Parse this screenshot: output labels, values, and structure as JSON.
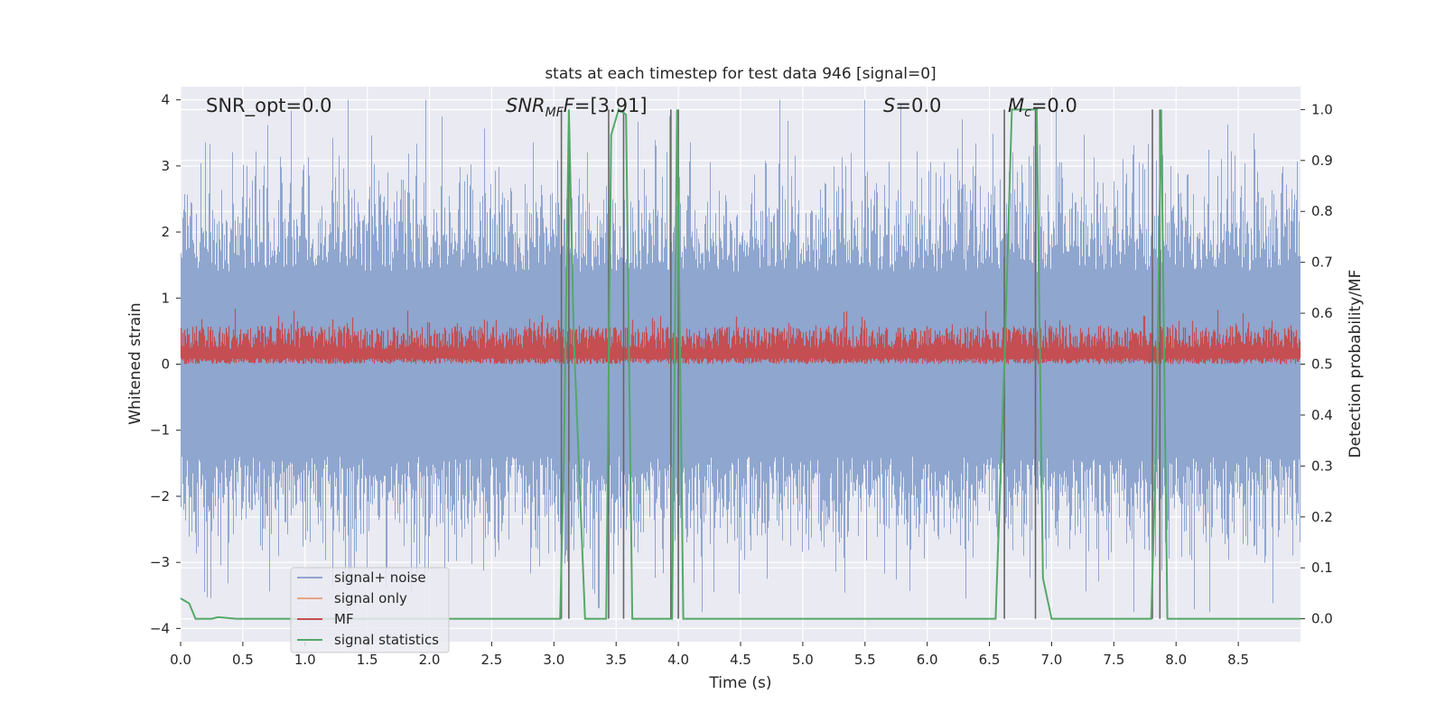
{
  "chart_data": {
    "type": "line",
    "title": "stats at each timestep for test data 946 [signal=0]",
    "xlabel": "Time (s)",
    "ylabel": "Whitened strain",
    "y2label": "Detection probability/MF",
    "xlim": [
      0.0,
      9.0
    ],
    "ylim": [
      -4.2,
      4.2
    ],
    "y2lim": [
      -0.045,
      1.045
    ],
    "xticks": [
      "0.0",
      "0.5",
      "1.0",
      "1.5",
      "2.0",
      "2.5",
      "3.0",
      "3.5",
      "4.0",
      "4.5",
      "5.0",
      "5.5",
      "6.0",
      "6.5",
      "7.0",
      "7.5",
      "8.0",
      "8.5"
    ],
    "yticks": [
      "4",
      "3",
      "2",
      "1",
      "0",
      "−1",
      "−2",
      "−3",
      "−4"
    ],
    "y2ticks": [
      "1.0",
      "0.9",
      "0.8",
      "0.7",
      "0.6",
      "0.5",
      "0.4",
      "0.3",
      "0.2",
      "0.1",
      "0.0"
    ],
    "grid": true,
    "legend_placement": "lower-left",
    "annotations": {
      "snr_opt": "SNR_opt=0.0",
      "snr_mf_main": "SNR",
      "snr_mf_sub": "MF",
      "snr_mf_val": "=[3.91]",
      "s_main": "S",
      "s_val": "=0.0",
      "mc_main": "M",
      "mc_sub": "c",
      "mc_val": "=0.0"
    },
    "series": [
      {
        "name": "signal+ noise",
        "color": "#8fa6cf",
        "description_range": [
          -3.7,
          4.0
        ]
      },
      {
        "name": "signal only",
        "color": "#e8a487",
        "values": "zero"
      },
      {
        "name": "MF",
        "color": "#c44e52",
        "range": [
          0.5,
          0.62
        ]
      },
      {
        "name": "signal statistics",
        "color": "#55a868",
        "x": [
          0.0,
          0.07,
          0.12,
          0.25,
          0.3,
          0.45,
          3.05,
          3.08,
          3.12,
          3.16,
          3.25,
          3.42,
          3.46,
          3.52,
          3.58,
          3.63,
          3.95,
          3.99,
          4.04,
          6.55,
          6.62,
          6.68,
          6.78,
          6.88,
          6.93,
          7.0,
          7.8,
          7.84,
          7.88,
          7.93,
          8.0,
          9.0
        ],
        "y": [
          0.04,
          0.03,
          0.0,
          0.0,
          0.003,
          0.0,
          0.0,
          0.32,
          1.0,
          0.55,
          0.0,
          0.0,
          0.95,
          1.0,
          0.99,
          0.0,
          0.0,
          1.0,
          0.0,
          0.0,
          0.5,
          1.0,
          1.0,
          1.0,
          0.08,
          0.0,
          0.0,
          0.35,
          1.0,
          0.0,
          0.0,
          0.0
        ]
      }
    ],
    "vlines": [
      3.06,
      3.12,
      3.44,
      3.56,
      3.94,
      4.0,
      6.62,
      6.87,
      7.81,
      7.87
    ],
    "vline_color": "#666666",
    "colors": {
      "background": "#eaeaf2",
      "grid": "#ffffff"
    }
  }
}
